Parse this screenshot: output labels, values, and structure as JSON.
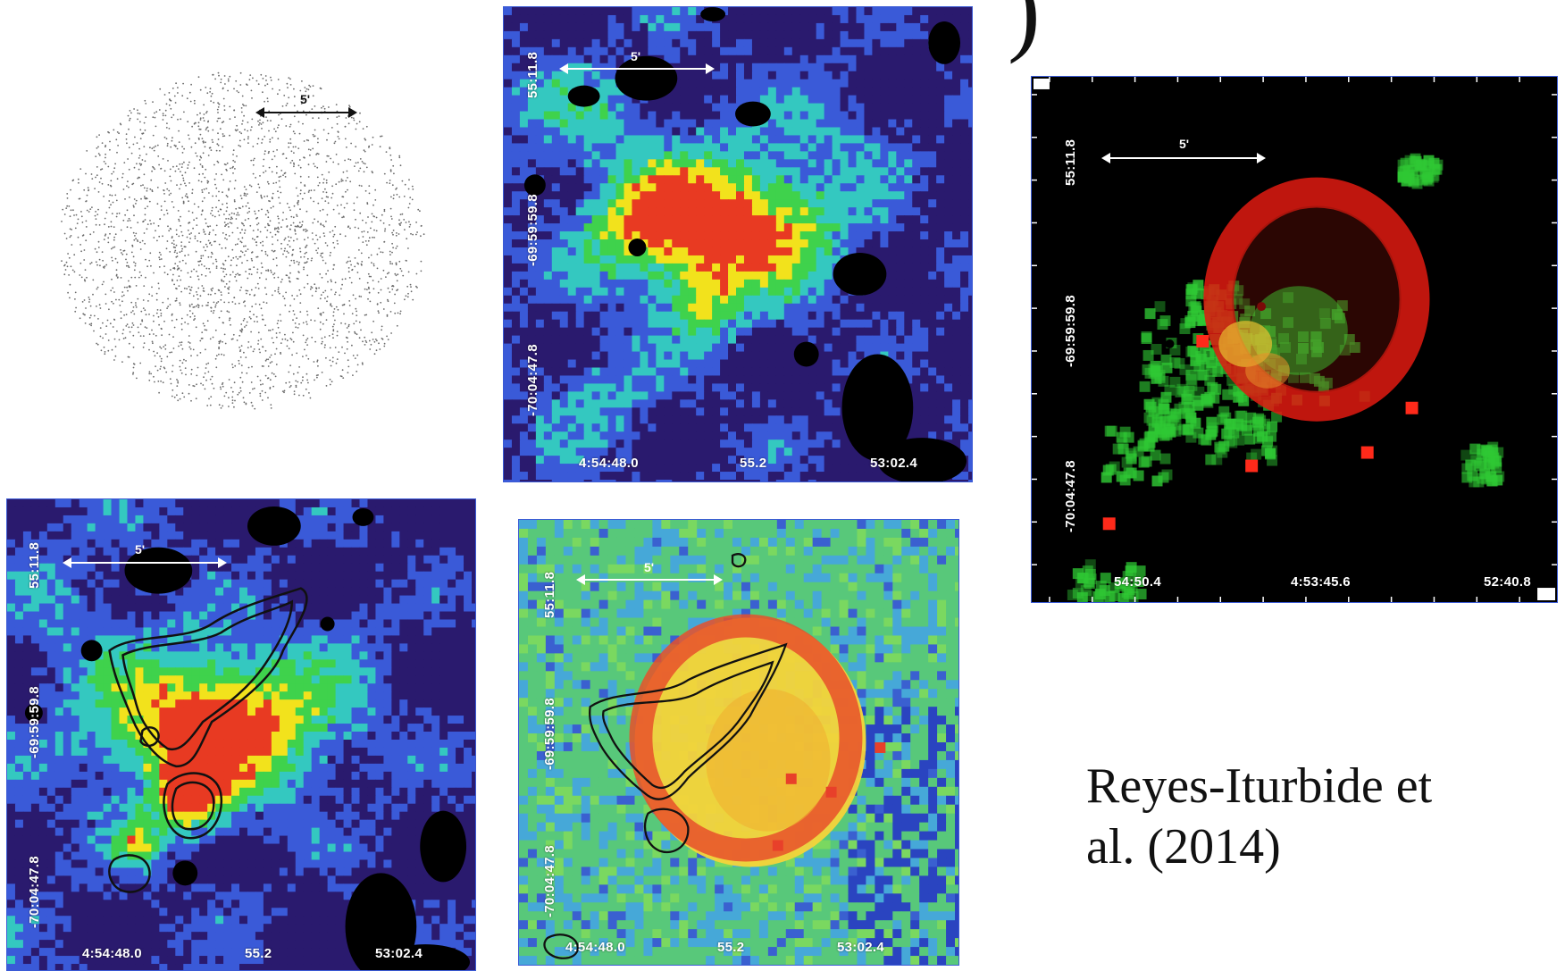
{
  "figure": {
    "caption_line1": "Reyes-Iturbide et",
    "caption_line2": "al. (2014)",
    "top_fragment": ")"
  },
  "panels": [
    {
      "id": "scatter",
      "scale_label": "5'",
      "description_colors": {
        "dots": "#555555",
        "background": "#ffffff"
      }
    },
    {
      "id": "top-middle",
      "scale_label": "5'",
      "x_ticks": [
        "4:54:48.0",
        "55.2",
        "53:02.4"
      ],
      "y_ticks": [
        "55:11.8",
        "-69:59:59.8",
        "-70:04:47.8"
      ]
    },
    {
      "id": "right",
      "scale_label": "5'",
      "x_ticks": [
        "54:50.4",
        "4:53:45.6",
        "52:40.8"
      ],
      "y_ticks": [
        "55:11.8",
        "-69:59:59.8",
        "-70:04:47.8"
      ]
    },
    {
      "id": "bottom-left",
      "scale_label": "5'",
      "x_ticks": [
        "4:54:48.0",
        "55.2",
        "53:02.4"
      ],
      "y_ticks": [
        "55:11.8",
        "-69:59:59.8",
        "-70:04:47.8"
      ]
    },
    {
      "id": "bottom-middle",
      "scale_label": "5'",
      "x_ticks": [
        "4:54:48.0",
        "55.2",
        "53:02.4"
      ],
      "y_ticks": [
        "55:11.8",
        "-69:59:59.8",
        "-70:04:47.8"
      ]
    }
  ],
  "colors": {
    "low": "#2a1a6e",
    "mid_low": "#3a5ad8",
    "mid": "#34c8c0",
    "mid_high": "#3fd24c",
    "high": "#f2e21c",
    "peak": "#e83a22",
    "red_shell": "#e01a10",
    "green_emission": "#2fc834",
    "axis_border": "#3b5bd6"
  }
}
